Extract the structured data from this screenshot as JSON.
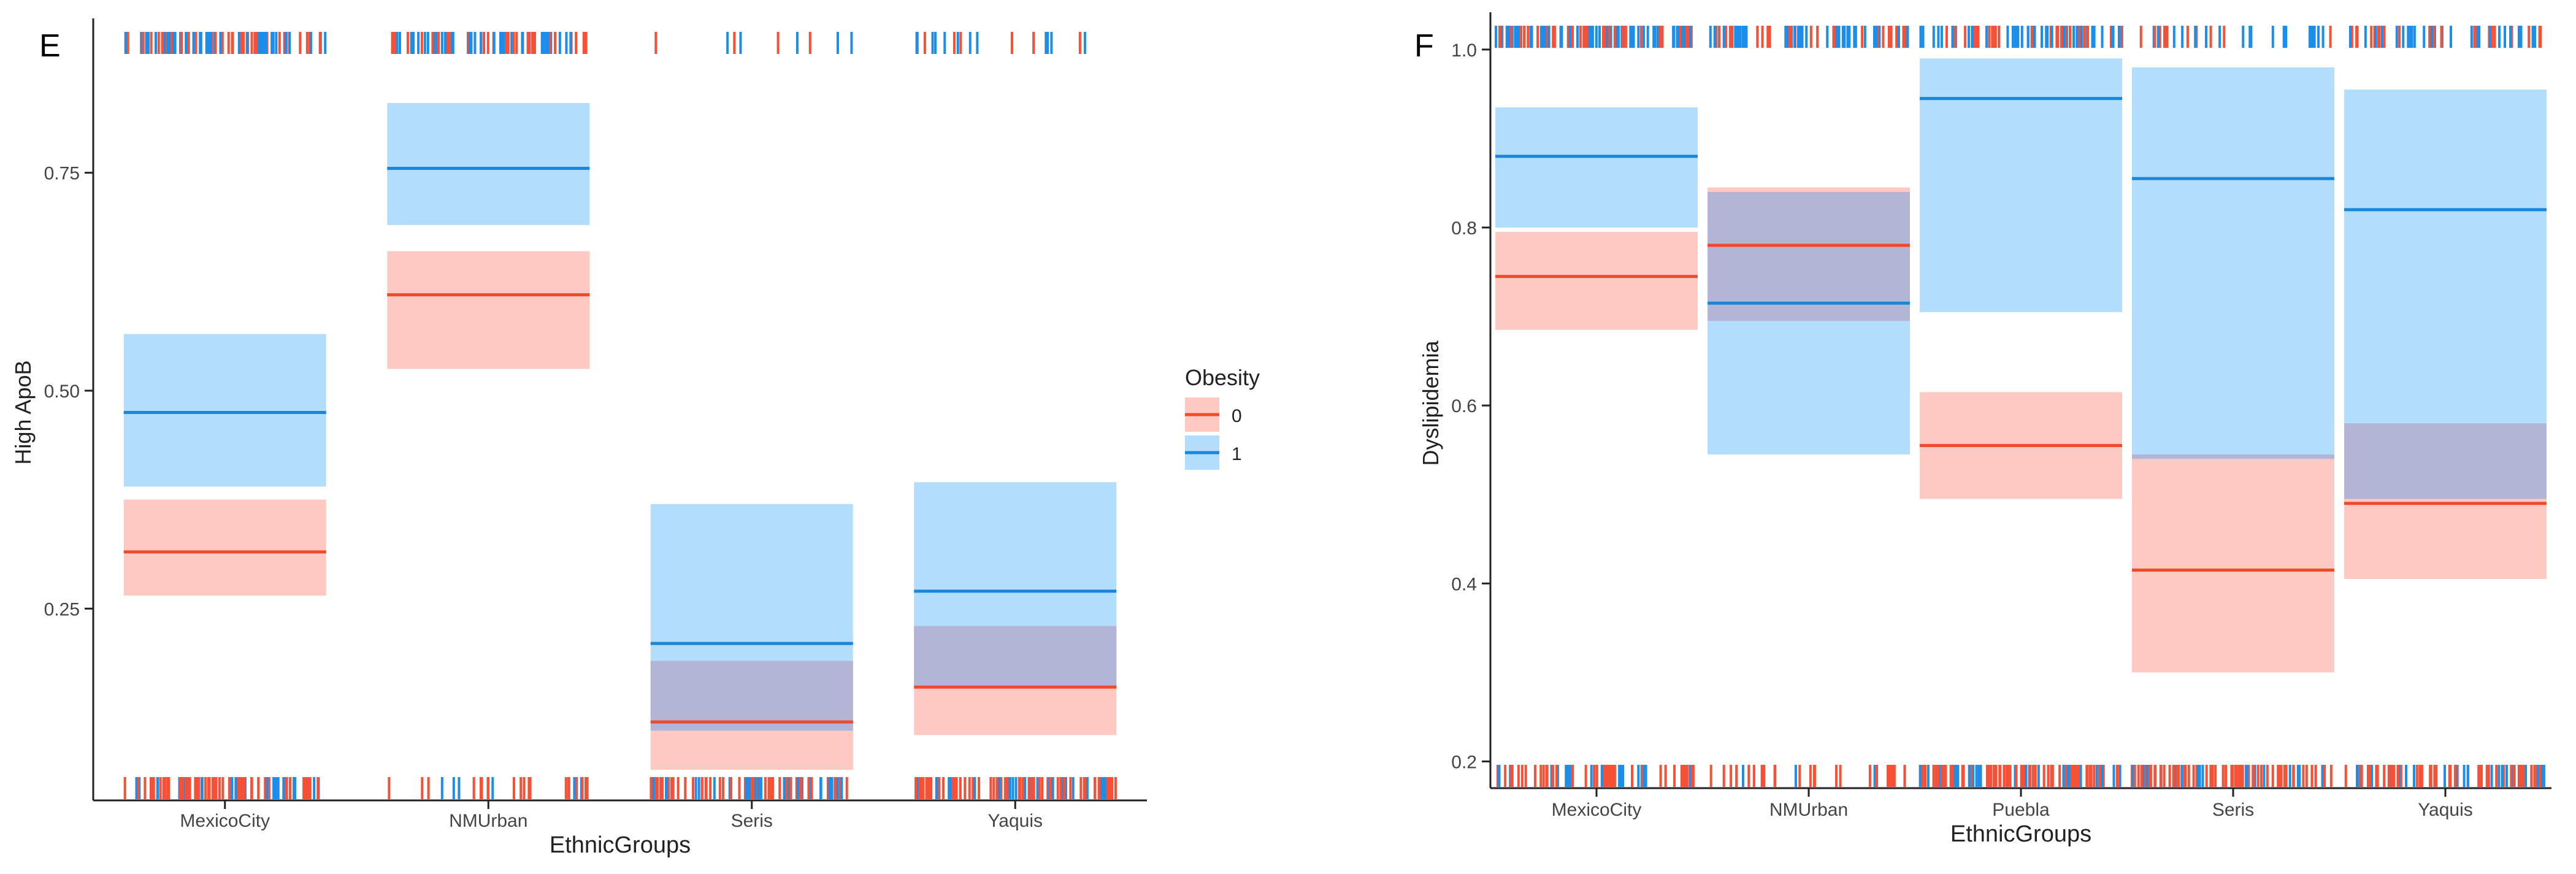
{
  "colors": {
    "group0": "#F8766D",
    "group1": "#00A5FF",
    "fill0": "#FFC9C3",
    "fill1": "#B3DDFC",
    "overlap": "#B3B5D6",
    "line0": "#F04A2B",
    "line1": "#1A86DA",
    "rug0": "#F65137",
    "rug1": "#1C8EEA",
    "axis": "#222222",
    "tick_text": "#444444",
    "title_text": "#222222"
  },
  "legend": {
    "title": "Obesity",
    "items": [
      {
        "label": "0",
        "group": "0"
      },
      {
        "label": "1",
        "group": "1"
      }
    ]
  },
  "chart_data": [
    {
      "type": "box-band",
      "panel_label": "E",
      "xlabel": "EthnicGroups",
      "ylabel": "High ApoB",
      "ylim": [
        0.03,
        0.92
      ],
      "yticks": [
        0.25,
        0.5,
        0.75
      ],
      "ytick_labels": [
        "0.25",
        "0.50",
        "0.75"
      ],
      "categories": [
        "MexicoCity",
        "NMUrban",
        "Seris",
        "Yaquis"
      ],
      "series": [
        {
          "name": "0",
          "mean": [
            0.315,
            0.61,
            0.12,
            0.16
          ],
          "lower": [
            0.265,
            0.525,
            0.065,
            0.105
          ],
          "upper": [
            0.375,
            0.66,
            0.19,
            0.23
          ]
        },
        {
          "name": "1",
          "mean": [
            0.475,
            0.755,
            0.21,
            0.27
          ],
          "lower": [
            0.39,
            0.69,
            0.11,
            0.16
          ],
          "upper": [
            0.565,
            0.83,
            0.37,
            0.395
          ]
        }
      ],
      "rug": {
        "top": [
          {
            "density": 0.82
          },
          {
            "density": 0.72
          },
          {
            "density": 0.08
          },
          {
            "density": 0.16
          }
        ],
        "bottom": [
          {
            "density": 0.82
          },
          {
            "density": 0.24
          },
          {
            "density": 0.72
          },
          {
            "density": 0.94
          }
        ]
      }
    },
    {
      "type": "box-band",
      "panel_label": "F",
      "xlabel": "EthnicGroups",
      "ylabel": "Dyslipidemia",
      "ylim": [
        0.17,
        1.035
      ],
      "yticks": [
        0.2,
        0.4,
        0.6,
        0.8,
        1.0
      ],
      "ytick_labels": [
        "0.2",
        "0.4",
        "0.6",
        "0.8",
        "1.0"
      ],
      "categories": [
        "MexicoCity",
        "NMUrban",
        "Puebla",
        "Seris",
        "Yaquis"
      ],
      "series": [
        {
          "name": "0",
          "mean": [
            0.745,
            0.78,
            0.555,
            0.415,
            0.49
          ],
          "lower": [
            0.685,
            0.695,
            0.495,
            0.3,
            0.405
          ],
          "upper": [
            0.795,
            0.845,
            0.615,
            0.545,
            0.58
          ]
        },
        {
          "name": "1",
          "mean": [
            0.88,
            0.715,
            0.945,
            0.855,
            0.82
          ],
          "lower": [
            0.8,
            0.545,
            0.705,
            0.54,
            0.495
          ],
          "upper": [
            0.935,
            0.84,
            0.99,
            0.98,
            0.955
          ]
        }
      ],
      "rug": {
        "top": [
          {
            "density": 1.0
          },
          {
            "density": 0.7
          },
          {
            "density": 0.7
          },
          {
            "density": 0.3
          },
          {
            "density": 0.5
          }
        ],
        "bottom": [
          {
            "density": 0.55
          },
          {
            "density": 0.25
          },
          {
            "density": 0.93
          },
          {
            "density": 0.75
          },
          {
            "density": 0.65
          }
        ]
      }
    }
  ]
}
